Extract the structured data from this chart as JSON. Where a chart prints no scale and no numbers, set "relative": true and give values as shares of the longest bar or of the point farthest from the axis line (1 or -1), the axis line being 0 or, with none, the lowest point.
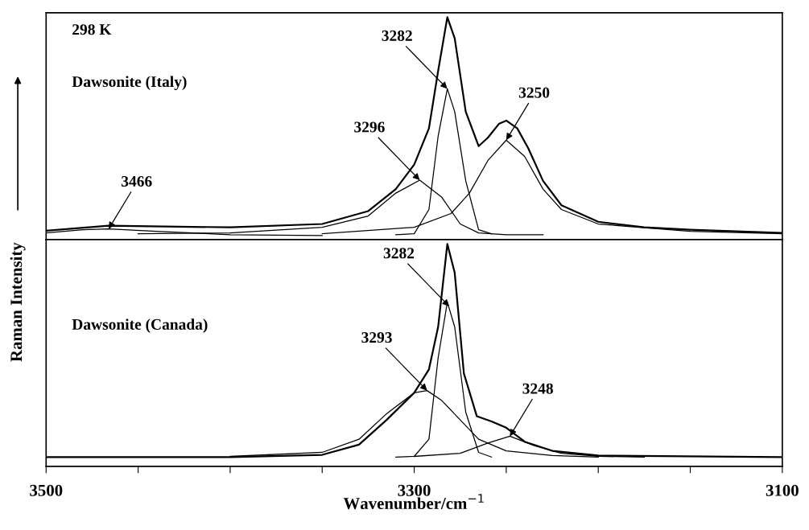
{
  "chart_data": [
    {
      "type": "line",
      "relative": true,
      "tick_labels": false,
      "grid": false,
      "legend": false,
      "marker": "none",
      "line_style": "solid",
      "ylabel": "Raman Intensity",
      "xlim": [
        3500,
        3100
      ],
      "annotations": [
        "298 K",
        "Dawsonite (Italy)",
        {
          "text": "3282",
          "x": 3282,
          "y": 0.678
        },
        {
          "text": "3296",
          "x": 3297,
          "y": 0.267
        },
        {
          "text": "3466",
          "x": 3466,
          "y": 0.048
        },
        {
          "text": "3250",
          "x": 3250,
          "y": 0.447
        }
      ],
      "series": [
        {
          "color": "#000000",
          "x": [
            3500,
            3466,
            3400,
            3350,
            3325,
            3310,
            3300,
            3292,
            3287,
            3282,
            3278,
            3272,
            3265,
            3260,
            3254,
            3250,
            3244,
            3238,
            3230,
            3220,
            3200,
            3175,
            3150,
            3100
          ],
          "values": [
            0.04,
            0.062,
            0.055,
            0.07,
            0.128,
            0.227,
            0.337,
            0.5,
            0.758,
            1.0,
            0.905,
            0.575,
            0.42,
            0.458,
            0.52,
            0.535,
            0.5,
            0.41,
            0.264,
            0.154,
            0.08,
            0.055,
            0.044,
            0.03
          ]
        },
        {
          "color": "#000000",
          "x": [
            3310,
            3300,
            3292,
            3287,
            3282,
            3278,
            3272,
            3265,
            3258
          ],
          "values": [
            0.022,
            0.026,
            0.135,
            0.465,
            0.678,
            0.575,
            0.264,
            0.044,
            0.026
          ]
        },
        {
          "color": "#000000",
          "x": [
            3450,
            3400,
            3350,
            3325,
            3310,
            3297,
            3285,
            3275,
            3265,
            3250,
            3230
          ],
          "values": [
            0.026,
            0.03,
            0.055,
            0.106,
            0.209,
            0.267,
            0.19,
            0.07,
            0.03,
            0.022,
            0.022
          ]
        },
        {
          "color": "#000000",
          "x": [
            3500,
            3480,
            3466,
            3440,
            3400,
            3350
          ],
          "values": [
            0.03,
            0.044,
            0.048,
            0.037,
            0.022,
            0.018
          ]
        },
        {
          "color": "#000000",
          "x": [
            3350,
            3300,
            3280,
            3270,
            3260,
            3250,
            3240,
            3230,
            3220,
            3200,
            3150,
            3100
          ],
          "values": [
            0.026,
            0.055,
            0.117,
            0.209,
            0.355,
            0.447,
            0.374,
            0.227,
            0.135,
            0.07,
            0.037,
            0.026
          ]
        }
      ]
    },
    {
      "type": "line",
      "relative": true,
      "tick_labels": "x",
      "grid": false,
      "legend": false,
      "marker": "none",
      "line_style": "solid",
      "xlabel": "Wavenumber/cm$^{−1}$",
      "xlim": [
        3500,
        3100
      ],
      "xticks": [
        3500,
        {
          "value": 3450,
          "label": null
        },
        {
          "value": 3400,
          "label": null
        },
        {
          "value": 3350,
          "label": null
        },
        3300,
        {
          "value": 3250,
          "label": null
        },
        {
          "value": 3200,
          "label": null
        },
        {
          "value": 3150,
          "label": null
        },
        3100
      ],
      "annotations": [
        "Dawsonite (Canada)",
        {
          "text": "3282",
          "x": 3281,
          "y": 0.72
        },
        {
          "text": "3293",
          "x": 3293,
          "y": 0.341
        },
        {
          "text": "3248",
          "x": 3248,
          "y": 0.136
        }
      ],
      "series": [
        {
          "color": "#000000",
          "x": [
            3500,
            3400,
            3350,
            3330,
            3315,
            3300,
            3292,
            3287,
            3282,
            3278,
            3273,
            3266,
            3258,
            3250,
            3240,
            3225,
            3200,
            3100
          ],
          "values": [
            0.042,
            0.042,
            0.052,
            0.098,
            0.209,
            0.331,
            0.436,
            0.627,
            1.0,
            0.871,
            0.418,
            0.226,
            0.202,
            0.174,
            0.111,
            0.07,
            0.049,
            0.042
          ]
        },
        {
          "color": "#000000",
          "x": [
            3310,
            3300,
            3292,
            3287,
            3282,
            3278,
            3272,
            3265,
            3258
          ],
          "values": [
            0.042,
            0.045,
            0.122,
            0.488,
            0.739,
            0.627,
            0.244,
            0.063,
            0.042
          ]
        },
        {
          "color": "#000000",
          "x": [
            3400,
            3350,
            3330,
            3315,
            3300,
            3293,
            3285,
            3275,
            3265,
            3250,
            3225,
            3200
          ],
          "values": [
            0.045,
            0.063,
            0.122,
            0.237,
            0.331,
            0.341,
            0.296,
            0.209,
            0.122,
            0.07,
            0.049,
            0.042
          ]
        },
        {
          "color": "#000000",
          "x": [
            3300,
            3275,
            3260,
            3248,
            3235,
            3220,
            3200,
            3175
          ],
          "values": [
            0.045,
            0.059,
            0.105,
            0.136,
            0.094,
            0.059,
            0.045,
            0.042
          ]
        }
      ]
    }
  ]
}
